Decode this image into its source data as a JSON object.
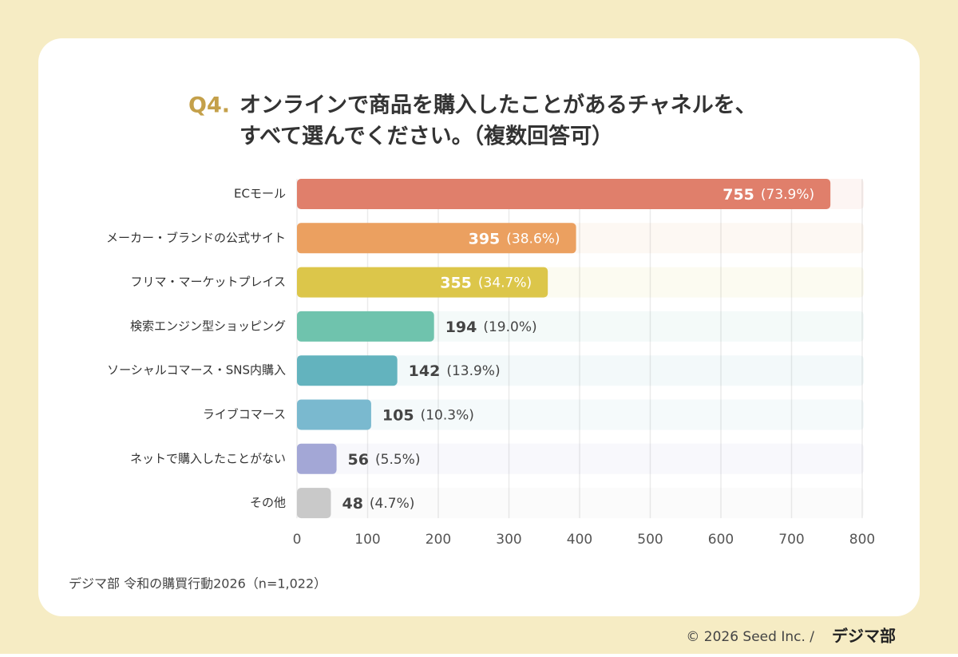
{
  "chart_data": {
    "type": "barh",
    "title_prefix": "Q4.",
    "title_lines": [
      "オンラインで商品を購入したことがあるチャネルを、",
      "すべて選んでください。（複数回答可）"
    ],
    "categories": [
      "ECモール",
      "メーカー・ブランドの公式サイト",
      "フリマ・マーケットプレイス",
      "検索エンジン型ショッピング",
      "ソーシャルコマース・SNS内購入",
      "ライブコマース",
      "ネットで購入したことがない",
      "その他"
    ],
    "values": [
      755,
      395,
      355,
      194,
      142,
      105,
      56,
      48
    ],
    "percent_labels": [
      "(73.9%)",
      "(38.6%)",
      "(34.7%)",
      "(19.0%)",
      "(13.9%)",
      "(10.3%)",
      "(5.5%)",
      "(4.7%)"
    ],
    "colors": [
      "#e07f6b",
      "#eba060",
      "#dcc64a",
      "#6fc3ad",
      "#63b3be",
      "#7ab9cf",
      "#a3a7d6",
      "#c9c9c9"
    ],
    "xlim": [
      0,
      800
    ],
    "xticks": [
      0,
      100,
      200,
      300,
      400,
      500,
      600,
      700,
      800
    ],
    "grid": true,
    "source": "デジマ部 令和の購買行動2026（n=1,022）",
    "copyright": "© 2026 Seed Inc. /",
    "logo": "デジマ部"
  }
}
